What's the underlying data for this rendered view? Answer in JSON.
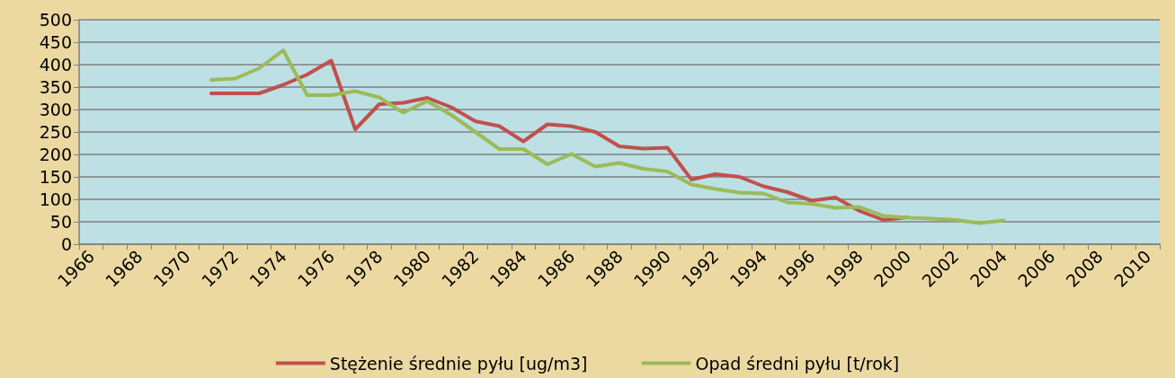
{
  "chart_data": {
    "type": "line",
    "categories": [
      "1966",
      null,
      "1968",
      null,
      "1970",
      null,
      "1972",
      null,
      "1974",
      null,
      "1976",
      null,
      "1978",
      null,
      "1980",
      null,
      "1982",
      null,
      "1984",
      null,
      "1986",
      null,
      "1988",
      null,
      "1990",
      null,
      "1992",
      null,
      "1994",
      null,
      "1996",
      null,
      "1998",
      null,
      "2000",
      null,
      "2002",
      null,
      "2004",
      null,
      "2006",
      null,
      "2008",
      null,
      "2010"
    ],
    "series": [
      {
        "name": "Stężenie średnie pyłu [ug/m3]",
        "color": "#c0504d",
        "values": [
          null,
          null,
          null,
          null,
          null,
          336,
          336,
          336,
          355,
          378,
          409,
          256,
          312,
          315,
          326,
          305,
          274,
          263,
          229,
          267,
          263,
          250,
          218,
          213,
          215,
          144,
          156,
          150,
          129,
          116,
          97,
          104,
          74,
          54,
          60,
          null,
          null,
          null,
          null,
          null,
          null,
          null,
          null,
          null,
          null
        ]
      },
      {
        "name": "Opad średni pyłu [t/rok]",
        "color": "#9bbb59",
        "values": [
          null,
          null,
          null,
          null,
          null,
          366,
          369,
          392,
          432,
          332,
          332,
          341,
          327,
          293,
          319,
          288,
          250,
          212,
          212,
          178,
          201,
          173,
          181,
          168,
          162,
          133,
          123,
          115,
          113,
          93,
          90,
          81,
          83,
          63,
          59,
          57,
          54,
          47,
          53,
          null,
          null,
          null,
          null,
          null,
          null
        ]
      }
    ],
    "ylim": [
      0,
      500
    ],
    "yticks": [
      0,
      50,
      100,
      150,
      200,
      250,
      300,
      350,
      400,
      450,
      500
    ],
    "grid": "y",
    "legend": "bottom",
    "marker": "none",
    "line_style": "solid"
  }
}
